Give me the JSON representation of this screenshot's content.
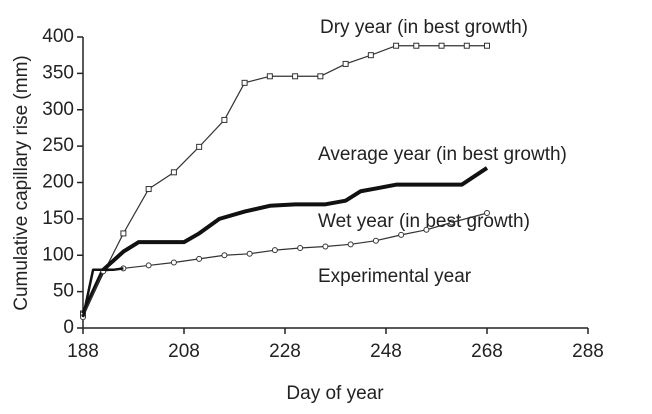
{
  "chart_data": {
    "type": "line",
    "x_label": "Day of year",
    "y_label": "Cumulative capillary rise (mm)",
    "xlim": [
      188,
      288
    ],
    "xticks": [
      188,
      208,
      228,
      248,
      268,
      288
    ],
    "ylim": [
      0,
      400
    ],
    "yticks": [
      0,
      50,
      100,
      150,
      200,
      250,
      300,
      350,
      400
    ],
    "series": [
      {
        "name": "Dry year (in best growth)",
        "color": "#333333",
        "marker": "square",
        "x": [
          188,
          196,
          201,
          206,
          211,
          216,
          220,
          225,
          230,
          235,
          240,
          245,
          250,
          254,
          259,
          264,
          268
        ],
        "values": [
          20,
          130,
          191,
          214,
          249,
          286,
          337,
          346,
          346,
          346,
          363,
          375,
          388,
          388,
          388,
          388,
          388
        ]
      },
      {
        "name": "Average year (in best growth)",
        "color": "#111111",
        "marker": "none",
        "x": [
          188,
          192,
          196,
          199,
          208,
          211,
          215,
          220,
          225,
          230,
          236,
          240,
          243,
          247,
          250,
          263,
          268
        ],
        "values": [
          20,
          80,
          105,
          118,
          118,
          130,
          150,
          160,
          168,
          170,
          170,
          175,
          188,
          193,
          197,
          197,
          220
        ]
      },
      {
        "name": "Wet year (in best growth)",
        "color": "#333333",
        "marker": "circle",
        "x": [
          188,
          192,
          196,
          201,
          206,
          211,
          216,
          221,
          226,
          231,
          236,
          241,
          246,
          251,
          256,
          261,
          268
        ],
        "values": [
          15,
          78,
          82,
          86,
          90,
          95,
          100,
          102,
          107,
          110,
          112,
          115,
          120,
          128,
          135,
          145,
          158
        ]
      },
      {
        "name": "Experimental year",
        "color": "#111111",
        "marker": "none",
        "x": [
          188,
          190,
          194,
          196
        ],
        "values": [
          15,
          80,
          80,
          82
        ]
      }
    ]
  }
}
